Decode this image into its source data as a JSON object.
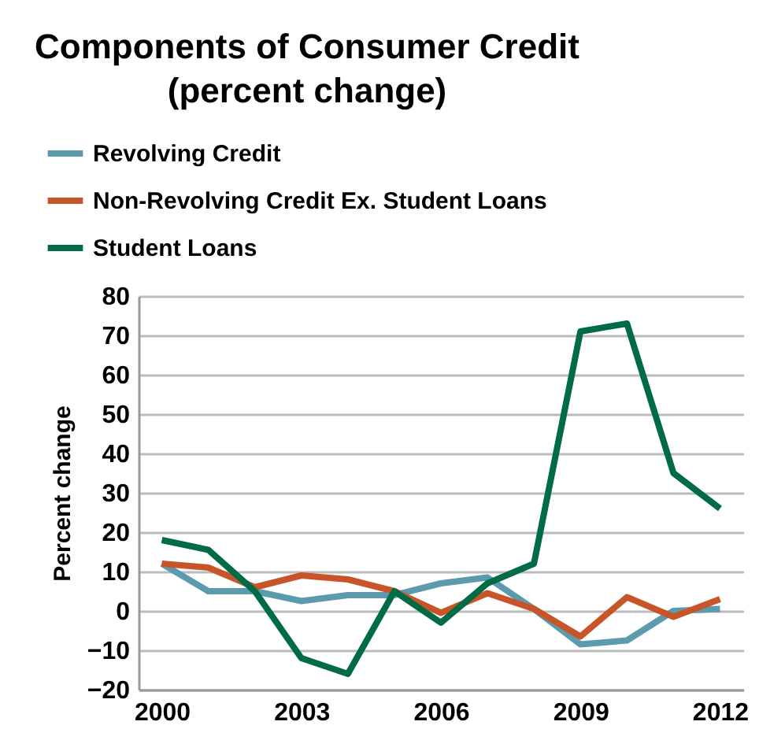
{
  "chart_data": {
    "type": "line",
    "title": "Components of Consumer Credit",
    "subtitle": "(percent change)",
    "ylabel": "Percent change",
    "x": [
      2000,
      2001,
      2002,
      2003,
      2004,
      2005,
      2006,
      2007,
      2008,
      2009,
      2010,
      2011,
      2012
    ],
    "series": [
      {
        "name": "Revolving Credit",
        "color": "#5b9bad",
        "values": [
          12,
          5,
          5,
          2.5,
          4,
          4,
          7,
          8.5,
          0.5,
          -8.5,
          -7.5,
          0,
          0.5
        ]
      },
      {
        "name": "Non-Revolving Credit Ex. Student Loans",
        "color": "#c8552a",
        "values": [
          12,
          11,
          6,
          9,
          8,
          5,
          -0.5,
          4.5,
          0.5,
          -6.5,
          3.5,
          -1.5,
          3
        ]
      },
      {
        "name": "Student Loans",
        "color": "#006b45",
        "values": [
          18,
          15.5,
          5,
          -12,
          -16,
          5,
          -3,
          7,
          12,
          71,
          73,
          35,
          26
        ]
      }
    ],
    "xlim": [
      1999.5,
      2012.5
    ],
    "xticks": [
      2000,
      2003,
      2006,
      2009,
      2012
    ],
    "ylim": [
      -20,
      80
    ],
    "yticks": [
      -20,
      -10,
      0,
      10,
      20,
      30,
      40,
      50,
      60,
      70,
      80
    ],
    "grid": "y",
    "legend": "top left",
    "marker": "none",
    "line_style": "solid"
  }
}
